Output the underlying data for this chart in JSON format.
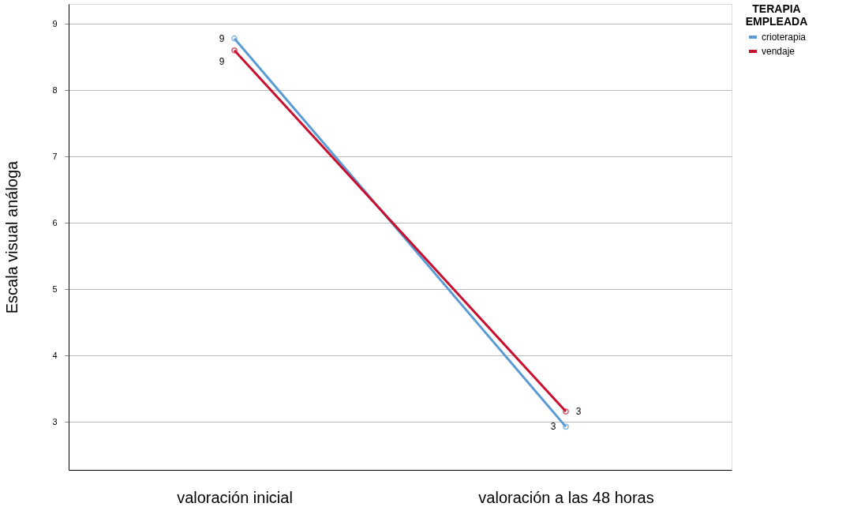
{
  "chart_data": {
    "type": "line",
    "ylabel": "Escala visual análoga",
    "legend_title": "TERAPIA EMPLEADA",
    "categories": [
      "valoración inicial",
      "valoración a las 48 horas"
    ],
    "series": [
      {
        "name": "crioterapia",
        "color": "#5b9bd5",
        "values": [
          8.78,
          2.93
        ],
        "value_labels": [
          "9",
          "3"
        ]
      },
      {
        "name": "vendaje",
        "color": "#c8102e",
        "values": [
          8.6,
          3.16
        ],
        "value_labels": [
          "9",
          "3"
        ]
      }
    ],
    "ylim": [
      2.28,
      9.3
    ],
    "yticks": [
      3,
      4,
      5,
      6,
      7,
      8,
      9
    ],
    "grid": "y",
    "legend": "top right",
    "marker": "circle",
    "line_style": "solid"
  }
}
